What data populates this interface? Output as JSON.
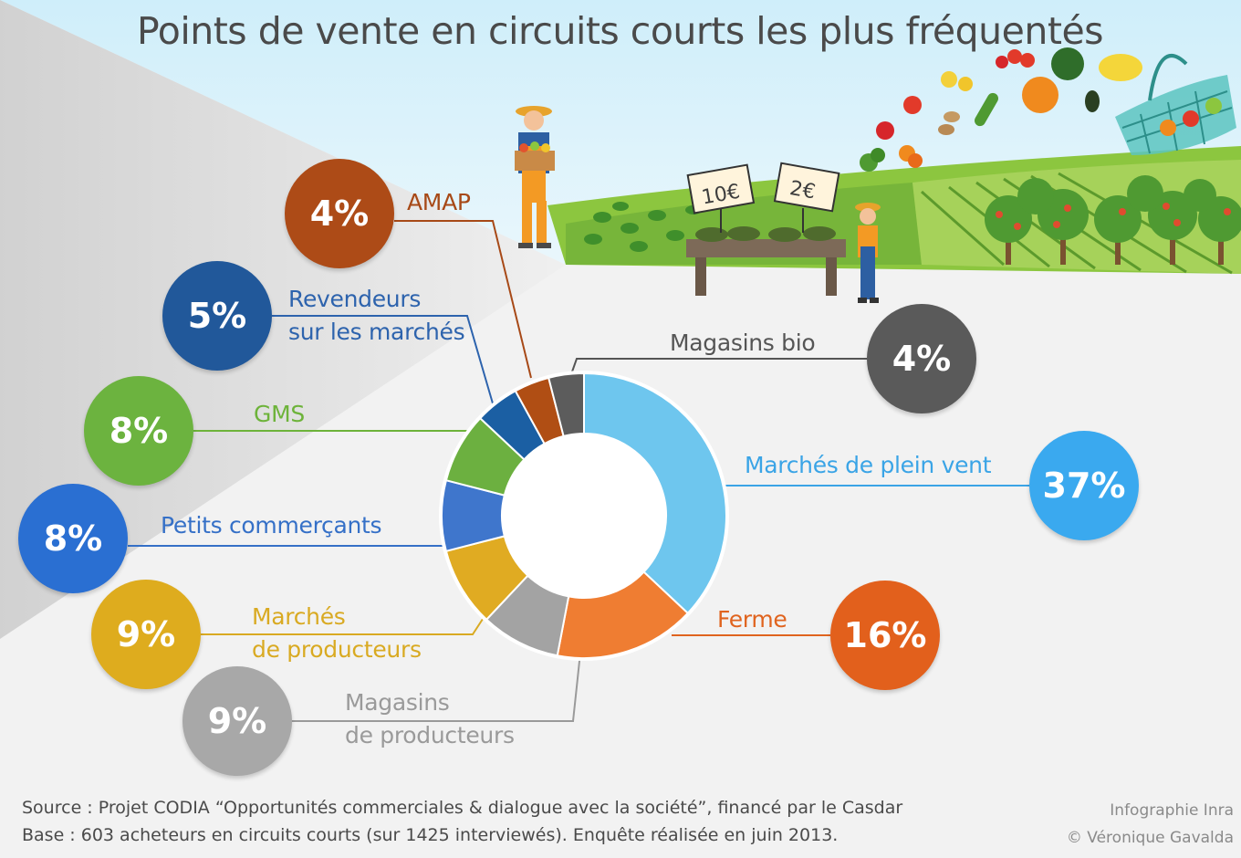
{
  "title": "Points de vente en circuits courts les plus fréquentés",
  "chart_data": {
    "type": "pie",
    "style": "donut",
    "unit": "%",
    "categories": [
      "Marchés de plein vent",
      "Ferme",
      "Magasins de producteurs",
      "Marchés de producteurs",
      "Petits commerçants",
      "GMS",
      "Revendeurs sur les marchés",
      "AMAP",
      "Magasins bio"
    ],
    "values": [
      37,
      16,
      9,
      9,
      8,
      8,
      5,
      4,
      4
    ],
    "value_labels": [
      "37%",
      "16%",
      "9%",
      "9%",
      "8%",
      "8%",
      "5%",
      "4%",
      "4%"
    ],
    "colors": [
      "#6ec6ee",
      "#ef7d32",
      "#a3a3a3",
      "#e0ab22",
      "#3f76cc",
      "#6cb040",
      "#1b5fa3",
      "#b04e14",
      "#5c5c5c"
    ],
    "bubble_colors": [
      "#3aa9ef",
      "#e2601c",
      "#a8a8a8",
      "#deac1e",
      "#2a6fd2",
      "#6cb33f",
      "#21589a",
      "#ad4b17",
      "#5a5a5a"
    ],
    "label_colors": [
      "#3aa4e6",
      "#e0641f",
      "#9a9a9a",
      "#d9aa22",
      "#3570c7",
      "#6db33a",
      "#2d63ad",
      "#a74917",
      "#555555"
    ],
    "label_lines": [
      [
        "Marchés de plein vent"
      ],
      [
        "Ferme"
      ],
      [
        "Magasins",
        "de producteurs"
      ],
      [
        "Marchés",
        "de producteurs"
      ],
      [
        "Petits commerçants"
      ],
      [
        "GMS"
      ],
      [
        "Revendeurs",
        "sur les marchés"
      ],
      [
        "AMAP"
      ],
      [
        "Magasins bio"
      ]
    ]
  },
  "scene": {
    "price_tags": [
      "10€",
      "2€"
    ],
    "icons": [
      "farmer-icon",
      "market-stall-icon",
      "vendor-icon",
      "fields-icon",
      "orchard-icon",
      "produce-icon",
      "basket-icon"
    ]
  },
  "footer": {
    "source_line1": "Source : Projet CODIA “Opportunités commerciales & dialogue avec la société”, financé par le Casdar",
    "source_line2": "Base : 603 acheteurs en circuits courts (sur 1425 interviewés). Enquête réalisée en juin 2013.",
    "credit_line1": "Infographie Inra",
    "credit_line2": "© Véronique Gavalda"
  }
}
